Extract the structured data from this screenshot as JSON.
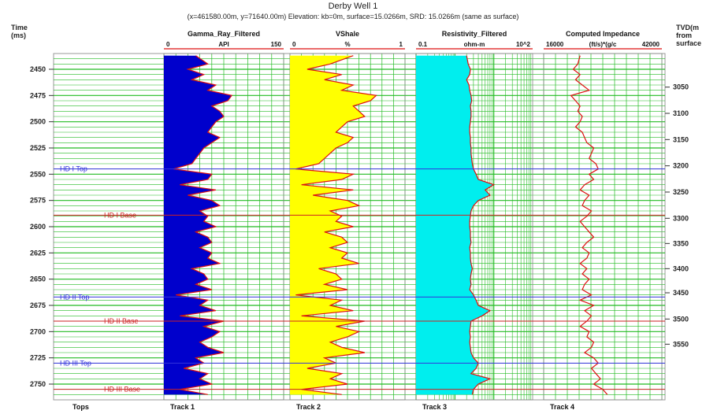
{
  "header": {
    "title": "Derby Well 1",
    "subtitle": "(x=461580.00m, y=71640.00m) Elevation: kb=0m, surface=15.0266m, SRD: 15.0266m (same as surface)",
    "left_axis_title_1": "Time",
    "left_axis_title_2": "(ms)",
    "right_axis_title_1": "TVD(m",
    "right_axis_title_2": "from",
    "right_axis_title_3": "surface"
  },
  "tracks": [
    {
      "name": "Gamma_Ray_Filtered",
      "unit": "API",
      "min": "0",
      "max": "150",
      "fill": "#0000cc",
      "footer": "Track 1"
    },
    {
      "name": "VShale",
      "unit": "%",
      "min": "0",
      "max": "1",
      "fill": "#ffff00",
      "footer": "Track 2"
    },
    {
      "name": "Resistivity_Filtered",
      "unit": "ohm-m",
      "min": "0.1",
      "max": "10^2",
      "fill": "#00eeee",
      "footer": "Track 3"
    },
    {
      "name": "Computed Impedance",
      "unit": "(ft/s)*(g/c",
      "min": "16000",
      "max": "42000",
      "fill": "",
      "footer": "Track 4"
    }
  ],
  "tops_footer": "Tops",
  "colors": {
    "grid": "#22bb22",
    "curve": "#dd1111",
    "top_line_blue": "#3333dd",
    "top_line_red": "#cc2222"
  },
  "chart_data": {
    "type": "line",
    "title": "Derby Well 1",
    "y_axis": {
      "label": "Time (ms)",
      "range": [
        2435,
        2765
      ],
      "ticks": [
        2450,
        2475,
        2500,
        2525,
        2550,
        2575,
        2600,
        2625,
        2650,
        2675,
        2700,
        2725,
        2750
      ]
    },
    "y2_axis": {
      "label": "TVD(m from surface)",
      "ticks": [
        3050,
        3100,
        3150,
        3200,
        3250,
        3300,
        3350,
        3400,
        3450,
        3500,
        3550
      ],
      "tick_times": [
        2467,
        2492,
        2517,
        2542,
        2567,
        2592,
        2616,
        2640,
        2663,
        2688,
        2712
      ]
    },
    "formation_tops": [
      {
        "name": "HD I Top",
        "time": 2545,
        "color": "#3333dd"
      },
      {
        "name": "HD I Base",
        "time": 2589,
        "color": "#cc2222"
      },
      {
        "name": "HD II Top",
        "time": 2667,
        "color": "#3333dd"
      },
      {
        "name": "HD II Base",
        "time": 2690,
        "color": "#cc2222"
      },
      {
        "name": "HD III Top",
        "time": 2730,
        "color": "#3333dd"
      },
      {
        "name": "HD III Base",
        "time": 2755,
        "color": "#cc2222"
      }
    ],
    "series": [
      {
        "name": "Gamma_Ray_Filtered",
        "units": "API",
        "scale": "linear",
        "range": [
          0,
          150
        ],
        "depth": [
          2437,
          2445,
          2450,
          2455,
          2460,
          2465,
          2470,
          2475,
          2480,
          2485,
          2490,
          2495,
          2500,
          2505,
          2510,
          2515,
          2520,
          2525,
          2530,
          2535,
          2540,
          2545,
          2550,
          2555,
          2560,
          2565,
          2570,
          2575,
          2580,
          2585,
          2590,
          2595,
          2600,
          2605,
          2610,
          2615,
          2620,
          2625,
          2630,
          2635,
          2640,
          2645,
          2650,
          2655,
          2660,
          2665,
          2670,
          2675,
          2680,
          2685,
          2690,
          2695,
          2700,
          2705,
          2710,
          2715,
          2720,
          2725,
          2730,
          2735,
          2740,
          2745,
          2750,
          2755,
          2760
        ],
        "values": [
          40,
          55,
          30,
          50,
          35,
          65,
          55,
          85,
          80,
          60,
          70,
          75,
          65,
          60,
          55,
          70,
          60,
          50,
          45,
          40,
          35,
          12,
          60,
          55,
          20,
          65,
          30,
          60,
          70,
          45,
          55,
          50,
          65,
          40,
          55,
          60,
          45,
          60,
          55,
          70,
          35,
          50,
          55,
          40,
          60,
          15,
          55,
          45,
          65,
          20,
          75,
          50,
          70,
          60,
          45,
          55,
          75,
          40,
          50,
          25,
          55,
          45,
          60,
          20,
          55
        ]
      },
      {
        "name": "VShale",
        "units": "%",
        "scale": "linear",
        "range": [
          0,
          1
        ],
        "depth": [
          2437,
          2445,
          2450,
          2455,
          2460,
          2465,
          2470,
          2475,
          2480,
          2485,
          2490,
          2495,
          2500,
          2505,
          2510,
          2515,
          2520,
          2525,
          2530,
          2535,
          2540,
          2545,
          2550,
          2555,
          2560,
          2565,
          2570,
          2575,
          2580,
          2585,
          2590,
          2595,
          2600,
          2605,
          2610,
          2615,
          2620,
          2625,
          2630,
          2635,
          2640,
          2645,
          2650,
          2655,
          2660,
          2665,
          2670,
          2675,
          2680,
          2685,
          2690,
          2695,
          2700,
          2705,
          2710,
          2715,
          2720,
          2725,
          2730,
          2735,
          2740,
          2745,
          2750,
          2755,
          2760
        ],
        "values": [
          0.55,
          0.35,
          0.15,
          0.45,
          0.3,
          0.55,
          0.45,
          0.75,
          0.7,
          0.55,
          0.6,
          0.65,
          0.5,
          0.45,
          0.4,
          0.55,
          0.5,
          0.4,
          0.35,
          0.3,
          0.25,
          0.05,
          0.55,
          0.45,
          0.1,
          0.55,
          0.2,
          0.5,
          0.6,
          0.35,
          0.45,
          0.4,
          0.55,
          0.3,
          0.45,
          0.5,
          0.35,
          0.5,
          0.45,
          0.6,
          0.25,
          0.4,
          0.45,
          0.3,
          0.5,
          0.05,
          0.45,
          0.35,
          0.55,
          0.1,
          0.65,
          0.4,
          0.6,
          0.5,
          0.35,
          0.45,
          0.65,
          0.3,
          0.4,
          0.15,
          0.45,
          0.35,
          0.5,
          0.1,
          0.45
        ]
      },
      {
        "name": "Resistivity_Filtered",
        "units": "ohm-m",
        "scale": "log",
        "range": [
          0.1,
          100
        ],
        "depth": [
          2437,
          2445,
          2450,
          2455,
          2460,
          2465,
          2470,
          2475,
          2480,
          2485,
          2490,
          2495,
          2500,
          2505,
          2510,
          2515,
          2520,
          2525,
          2530,
          2535,
          2540,
          2545,
          2550,
          2555,
          2560,
          2565,
          2570,
          2575,
          2580,
          2585,
          2590,
          2595,
          2600,
          2605,
          2610,
          2615,
          2620,
          2625,
          2630,
          2635,
          2640,
          2645,
          2650,
          2655,
          2660,
          2665,
          2670,
          2675,
          2680,
          2685,
          2690,
          2695,
          2700,
          2705,
          2710,
          2715,
          2720,
          2725,
          2730,
          2735,
          2740,
          2745,
          2750,
          2755,
          2760
        ],
        "values": [
          2.0,
          2.2,
          2.5,
          2.4,
          2.0,
          2.3,
          2.4,
          2.6,
          2.7,
          2.5,
          2.6,
          2.6,
          2.5,
          2.4,
          2.4,
          2.5,
          2.5,
          2.6,
          2.6,
          2.7,
          2.8,
          3.0,
          3.5,
          4.0,
          10.0,
          6.0,
          8.0,
          4.0,
          3.0,
          2.6,
          2.5,
          2.4,
          2.4,
          2.5,
          2.5,
          2.6,
          2.4,
          2.5,
          2.5,
          2.6,
          2.8,
          2.6,
          2.5,
          2.6,
          2.4,
          3.0,
          3.5,
          4.0,
          8.0,
          5.0,
          2.6,
          2.5,
          2.4,
          2.5,
          2.4,
          2.5,
          2.6,
          3.0,
          4.0,
          3.5,
          2.6,
          8.0,
          4.0,
          3.0,
          2.8
        ]
      },
      {
        "name": "Computed Impedance",
        "units": "(ft/s)*(g/c",
        "scale": "linear",
        "range": [
          16000,
          42000
        ],
        "depth": [
          2437,
          2445,
          2450,
          2455,
          2460,
          2465,
          2470,
          2475,
          2480,
          2485,
          2490,
          2495,
          2500,
          2505,
          2510,
          2515,
          2520,
          2525,
          2530,
          2535,
          2540,
          2545,
          2550,
          2555,
          2560,
          2565,
          2570,
          2575,
          2580,
          2585,
          2590,
          2595,
          2600,
          2605,
          2610,
          2615,
          2620,
          2625,
          2630,
          2635,
          2640,
          2645,
          2650,
          2655,
          2660,
          2665,
          2670,
          2675,
          2680,
          2685,
          2690,
          2695,
          2700,
          2705,
          2710,
          2715,
          2720,
          2725,
          2730,
          2735,
          2740,
          2745,
          2750,
          2755,
          2760
        ],
        "values": [
          24000,
          23500,
          22500,
          24000,
          23000,
          24500,
          26000,
          22000,
          23000,
          24000,
          23500,
          24500,
          24000,
          23000,
          24500,
          25000,
          25500,
          27000,
          26500,
          26000,
          27500,
          28000,
          26000,
          27000,
          25000,
          24000,
          26000,
          25000,
          24500,
          26500,
          25500,
          24000,
          25000,
          26000,
          27000,
          25500,
          24500,
          26000,
          25500,
          24000,
          25500,
          24500,
          26000,
          25000,
          24500,
          26500,
          24000,
          27000,
          25000,
          26500,
          25500,
          24000,
          26000,
          25500,
          27000,
          26500,
          25000,
          27000,
          28000,
          26500,
          27500,
          28500,
          27000,
          29000,
          30000
        ]
      }
    ]
  }
}
